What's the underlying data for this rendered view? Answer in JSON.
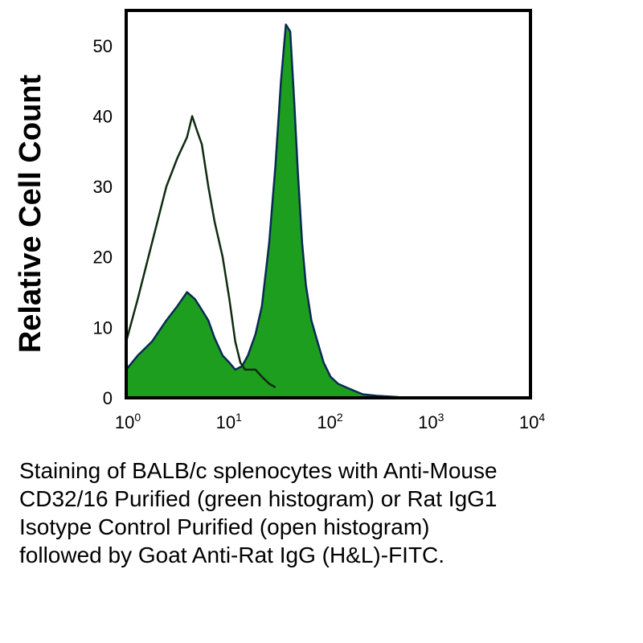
{
  "chart_data": {
    "type": "area",
    "xscale": "log",
    "xlim": [
      1,
      10000
    ],
    "ylim": [
      0,
      55
    ],
    "ylabel": "Relative Cell Count",
    "xlabel": "",
    "grid": false,
    "x_ticks": [
      {
        "base": "10",
        "exp": "0",
        "value": 1
      },
      {
        "base": "10",
        "exp": "1",
        "value": 10
      },
      {
        "base": "10",
        "exp": "2",
        "value": 100
      },
      {
        "base": "10",
        "exp": "3",
        "value": 1000
      },
      {
        "base": "10",
        "exp": "4",
        "value": 10000
      }
    ],
    "y_ticks": [
      "0",
      "10",
      "20",
      "30",
      "40",
      "50"
    ],
    "series": [
      {
        "fill": "#1e9e1e",
        "stroke": "#0a2a55",
        "filled": true,
        "x": [
          1,
          1.3,
          1.8,
          2.5,
          3.2,
          4,
          4.8,
          5.6,
          6.5,
          7.5,
          9,
          10.5,
          12,
          14,
          16,
          19,
          22,
          26,
          30,
          34,
          38,
          42,
          46,
          50,
          55,
          60,
          68,
          78,
          90,
          105,
          125,
          150,
          180,
          220,
          300,
          500,
          1000,
          2000,
          5000,
          10000
        ],
        "y": [
          4,
          6,
          8,
          11,
          13,
          15,
          14,
          12.5,
          11,
          8.5,
          6,
          5,
          4,
          4.5,
          6,
          9,
          13,
          22,
          33,
          45,
          53,
          52,
          42,
          32,
          22,
          16,
          11,
          8,
          5,
          3,
          2,
          1.5,
          1,
          0.5,
          0.3,
          0.1,
          0,
          0,
          0,
          0
        ]
      },
      {
        "fill": "none",
        "stroke": "#0f2b10",
        "filled": false,
        "x": [
          1,
          1.3,
          1.8,
          2.5,
          3.2,
          4,
          4.5,
          5,
          5.6,
          6.5,
          7.5,
          9,
          10.5,
          12,
          13.5,
          15,
          17,
          19,
          22,
          26,
          30
        ],
        "y": [
          8,
          14,
          22,
          30,
          34,
          37,
          40,
          38,
          36,
          30,
          25,
          20,
          14,
          8,
          5,
          4,
          4,
          4,
          3,
          2,
          1.5
        ]
      }
    ]
  },
  "caption": [
    "Staining of BALB/c splenocytes with Anti-Mouse",
    "CD32/16 Purified (green histogram) or Rat IgG1",
    "Isotype Control Purified (open histogram)",
    "followed by Goat Anti-Rat IgG (H&L)-FITC."
  ]
}
